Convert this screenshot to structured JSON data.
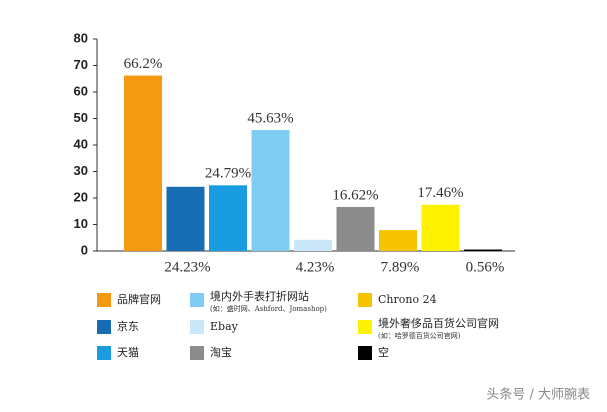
{
  "chart_data": {
    "type": "bar",
    "categories": [
      "品牌官网",
      "京东",
      "天猫",
      "境内外手表打折网站",
      "Ebay",
      "淘宝",
      "Chrono 24",
      "境外奢侈品百货公司官网",
      "空"
    ],
    "category_notes": {
      "3": "(如：盛时网、Ashford、Jomashop)",
      "7": "(如：哈罗德百货公司官网)"
    },
    "values": [
      66.2,
      24.23,
      24.79,
      45.63,
      4.23,
      16.62,
      7.89,
      17.46,
      0.56
    ],
    "value_labels": [
      "66.2%",
      "24.23%",
      "24.79%",
      "45.63%",
      "4.23%",
      "16.62%",
      "7.89%",
      "17.46%",
      "0.56%"
    ],
    "colors": [
      "#f39a12",
      "#166db3",
      "#1a9de0",
      "#80cdf3",
      "#c9e7f8",
      "#8c8c8c",
      "#f5c300",
      "#fff200",
      "#000000"
    ],
    "ylim": [
      0,
      80
    ],
    "yticks": [
      0,
      10,
      20,
      30,
      40,
      50,
      60,
      70,
      80
    ]
  },
  "watermark": "头条号 / 大师腕表"
}
